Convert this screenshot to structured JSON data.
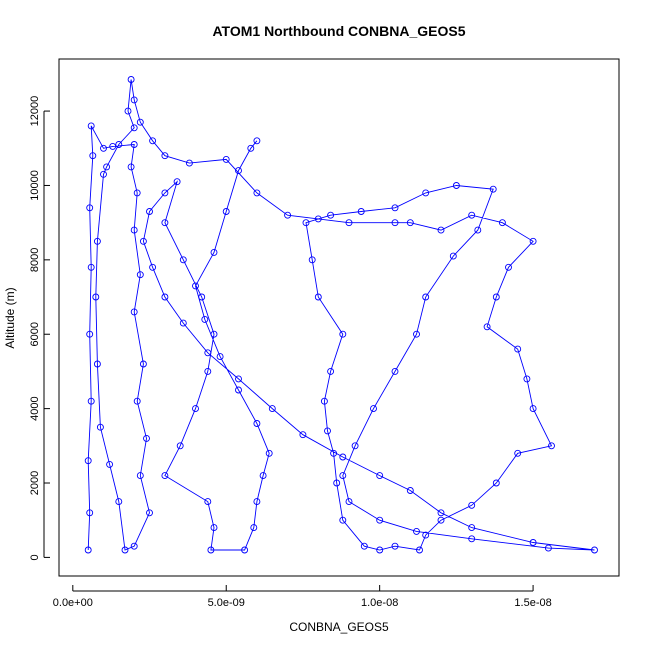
{
  "chart_data": {
    "type": "line",
    "title": "ATOM1 Northbound CONBNA_GEOS5",
    "xlabel": "CONBNA_GEOS5",
    "ylabel": "Altitude (m)",
    "xlim": [
      -4.5e-10,
      1.78e-08
    ],
    "ylim": [
      -500,
      13400
    ],
    "x_ticks": [
      0,
      5e-09,
      1e-08,
      1.5e-08
    ],
    "x_tick_labels": [
      "0.0e+00",
      "5.0e-09",
      "1.0e-08",
      "1.5e-08"
    ],
    "y_ticks": [
      0,
      2000,
      4000,
      6000,
      8000,
      10000,
      12000
    ],
    "y_tick_labels": [
      "0",
      "2000",
      "4000",
      "6000",
      "8000",
      "10000",
      "12000"
    ],
    "grid": false,
    "legend": "none",
    "marker": "open-circle",
    "line_color": "#0000ff",
    "series": [
      {
        "points": [
          [
            5e-10,
            200
          ],
          [
            5.5e-10,
            1200
          ],
          [
            5e-10,
            2600
          ],
          [
            6e-10,
            4200
          ],
          [
            5.5e-10,
            6000
          ],
          [
            6e-10,
            7800
          ],
          [
            5.5e-10,
            9400
          ],
          [
            6.5e-10,
            10800
          ],
          [
            6e-10,
            11600
          ],
          [
            1e-09,
            11000
          ],
          [
            1.3e-09,
            11050
          ],
          [
            2e-09,
            11100
          ],
          [
            1.9e-09,
            10500
          ],
          [
            2.1e-09,
            9800
          ],
          [
            2e-09,
            8800
          ],
          [
            2.2e-09,
            7600
          ],
          [
            2e-09,
            6600
          ],
          [
            2.3e-09,
            5200
          ],
          [
            2.1e-09,
            4200
          ],
          [
            2.4e-09,
            3200
          ],
          [
            2.2e-09,
            2200
          ],
          [
            2.5e-09,
            1200
          ],
          [
            2e-09,
            300
          ],
          [
            1.7e-09,
            200
          ],
          [
            1.5e-09,
            1500
          ],
          [
            1.2e-09,
            2500
          ],
          [
            9e-10,
            3500
          ],
          [
            8e-10,
            5200
          ],
          [
            7.5e-10,
            7000
          ],
          [
            8e-10,
            8500
          ],
          [
            1e-09,
            10300
          ],
          [
            1.1e-09,
            10500
          ],
          [
            1.5e-09,
            11100
          ],
          [
            2e-09,
            11550
          ],
          [
            1.8e-09,
            12000
          ],
          [
            1.9e-09,
            12850
          ],
          [
            2e-09,
            12300
          ],
          [
            2.2e-09,
            11700
          ],
          [
            2.6e-09,
            11200
          ],
          [
            3e-09,
            10800
          ],
          [
            3.8e-09,
            10600
          ],
          [
            5e-09,
            10700
          ],
          [
            6e-09,
            9800
          ],
          [
            7e-09,
            9200
          ],
          [
            8e-09,
            9100
          ],
          [
            9e-09,
            9000
          ],
          [
            1.05e-08,
            9000
          ],
          [
            1.1e-08,
            9000
          ],
          [
            1.2e-08,
            8800
          ],
          [
            1.3e-08,
            9200
          ],
          [
            1.4e-08,
            9000
          ],
          [
            1.5e-08,
            8500
          ],
          [
            1.42e-08,
            7800
          ],
          [
            1.38e-08,
            7000
          ],
          [
            1.35e-08,
            6200
          ],
          [
            1.45e-08,
            5600
          ],
          [
            1.48e-08,
            4800
          ],
          [
            1.5e-08,
            4000
          ],
          [
            1.56e-08,
            3000
          ],
          [
            1.45e-08,
            2800
          ],
          [
            1.38e-08,
            2000
          ],
          [
            1.3e-08,
            1400
          ],
          [
            1.2e-08,
            1000
          ],
          [
            1.15e-08,
            600
          ],
          [
            1.13e-08,
            200
          ],
          [
            1.05e-08,
            300
          ],
          [
            1e-08,
            200
          ],
          [
            9.5e-09,
            300
          ],
          [
            8.8e-09,
            1000
          ],
          [
            8.6e-09,
            2000
          ],
          [
            8.5e-09,
            2800
          ],
          [
            8.3e-09,
            3400
          ],
          [
            8.2e-09,
            4200
          ],
          [
            8.4e-09,
            5000
          ],
          [
            8.8e-09,
            6000
          ],
          [
            8e-09,
            7000
          ],
          [
            7.8e-09,
            8000
          ],
          [
            7.6e-09,
            9000
          ],
          [
            8.4e-09,
            9200
          ],
          [
            9.4e-09,
            9300
          ],
          [
            1.05e-08,
            9400
          ],
          [
            1.15e-08,
            9800
          ],
          [
            1.25e-08,
            10000
          ],
          [
            1.37e-08,
            9900
          ],
          [
            1.32e-08,
            8800
          ],
          [
            1.24e-08,
            8100
          ],
          [
            1.15e-08,
            7000
          ],
          [
            1.12e-08,
            6000
          ],
          [
            1.05e-08,
            5000
          ],
          [
            9.8e-09,
            4000
          ],
          [
            9.2e-09,
            3000
          ],
          [
            8.8e-09,
            2200
          ],
          [
            9e-09,
            1500
          ],
          [
            1e-08,
            1000
          ],
          [
            1.12e-08,
            700
          ],
          [
            1.3e-08,
            500
          ],
          [
            1.55e-08,
            250
          ],
          [
            1.7e-08,
            200
          ],
          [
            1.5e-08,
            400
          ],
          [
            1.3e-08,
            800
          ],
          [
            1.2e-08,
            1200
          ],
          [
            1.1e-08,
            1800
          ],
          [
            1e-08,
            2200
          ],
          [
            8.8e-09,
            2700
          ],
          [
            7.5e-09,
            3300
          ],
          [
            6.5e-09,
            4000
          ],
          [
            5.4e-09,
            4800
          ],
          [
            4.4e-09,
            5500
          ],
          [
            3.6e-09,
            6300
          ],
          [
            3e-09,
            7000
          ],
          [
            2.6e-09,
            7800
          ],
          [
            2.3e-09,
            8500
          ],
          [
            2.5e-09,
            9300
          ],
          [
            3e-09,
            9800
          ],
          [
            3.4e-09,
            10100
          ],
          [
            3e-09,
            9000
          ],
          [
            3.6e-09,
            8000
          ],
          [
            4.2e-09,
            7000
          ],
          [
            4.6e-09,
            6000
          ],
          [
            4.4e-09,
            5000
          ],
          [
            4e-09,
            4000
          ],
          [
            3.5e-09,
            3000
          ],
          [
            3e-09,
            2200
          ],
          [
            4.4e-09,
            1500
          ],
          [
            4.6e-09,
            800
          ],
          [
            4.5e-09,
            200
          ],
          [
            5.6e-09,
            200
          ],
          [
            5.9e-09,
            800
          ],
          [
            6e-09,
            1500
          ],
          [
            6.2e-09,
            2200
          ],
          [
            6.4e-09,
            2800
          ],
          [
            6e-09,
            3600
          ],
          [
            5.4e-09,
            4500
          ],
          [
            4.8e-09,
            5400
          ],
          [
            4.3e-09,
            6400
          ],
          [
            4e-09,
            7300
          ],
          [
            4.6e-09,
            8200
          ],
          [
            5e-09,
            9300
          ],
          [
            5.4e-09,
            10400
          ],
          [
            5.8e-09,
            11000
          ],
          [
            6e-09,
            11200
          ]
        ]
      }
    ]
  }
}
